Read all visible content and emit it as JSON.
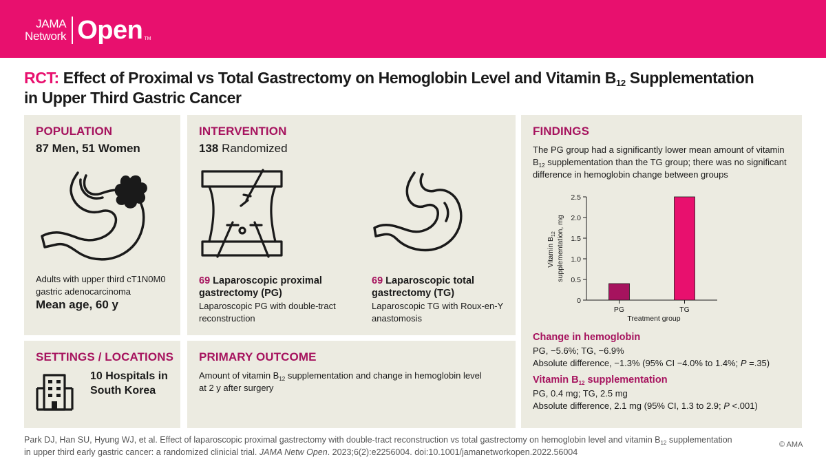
{
  "header": {
    "logo_line1": "JAMA",
    "logo_line2": "Network",
    "logo_open": "Open",
    "logo_tm": "TM"
  },
  "title": {
    "prefix": "RCT:",
    "text_part1": "Effect of Proximal vs Total Gastrectomy on Hemoglobin Level and Vitamin B",
    "subscript": "12",
    "text_part2": " Supplementation",
    "text_line2": "in Upper Third Gastric Cancer"
  },
  "population": {
    "label": "POPULATION",
    "headline": "87 Men, 51 Women",
    "description": "Adults with upper third cT1N0M0 gastric adenocarcinoma",
    "age": "Mean age, 60 y"
  },
  "intervention": {
    "label": "INTERVENTION",
    "headline_number": "138",
    "headline_text": " Randomized",
    "pg": {
      "count": "69",
      "title": " Laparoscopic proximal gastrectomy (PG)",
      "description": "Laparoscopic PG with double-tract reconstruction"
    },
    "tg": {
      "count": "69",
      "title": " Laparoscopic total gastrectomy (TG)",
      "description": "Laparoscopic TG with Roux-en-Y anastomosis"
    }
  },
  "findings": {
    "label": "FINDINGS",
    "intro_part1": "The PG group had a significantly lower mean amount of vitamin B",
    "intro_sub": "12",
    "intro_part2": " supplementation than the TG group; there was no significant difference in hemoglobin change between groups",
    "hemoglobin": {
      "title": "Change in hemoglobin",
      "line1": "PG, −5.6%; TG, −6.9%",
      "line2_a": "Absolute difference, −1.3% (95% CI −4.0% to 1.4%; ",
      "line2_p": "P",
      "line2_b": " =.35)"
    },
    "vitamin": {
      "title_a": "Vitamin B",
      "title_sub": "12",
      "title_b": " supplementation",
      "line1": "PG, 0.4 mg; TG, 2.5 mg",
      "line2_a": "Absolute difference, 2.1 mg (95% CI, 1.3 to 2.9; ",
      "line2_p": "P",
      "line2_b": " <.001)"
    }
  },
  "settings": {
    "label": "SETTINGS / LOCATIONS",
    "text": "10 Hospitals in South Korea"
  },
  "outcome": {
    "label": "PRIMARY OUTCOME",
    "text_part1": "Amount of vitamin B",
    "text_sub": "12",
    "text_part2": " supplementation and change in hemoglobin level at 2 y after surgery"
  },
  "citation": {
    "part1": "Park DJ, Han SU, Hyung WJ, et al. Effect of laparoscopic proximal gastrectomy with double-tract reconstruction vs total gastrectomy on hemoglobin level and vitamin B",
    "sub": "12",
    "part2": " supplementation in upper third early gastric cancer: a randomized clinicial trial. ",
    "journal": "JAMA Netw Open",
    "part3": ". 2023;6(2):e2256004. doi:10.1001/jamanetworkopen.2022.56004"
  },
  "copyright": "© AMA",
  "colors": {
    "brand": "#e8106e",
    "label": "#a6135e",
    "panel": "#ecebe1",
    "pg_bar": "#a6135e",
    "tg_bar": "#e8106e"
  },
  "chart_data": {
    "type": "bar",
    "categories": [
      "PG",
      "TG"
    ],
    "values": [
      0.4,
      2.5
    ],
    "title": "",
    "xlabel": "Treatment group",
    "ylabel_a": "Vitamin B",
    "ylabel_sub": "12",
    "ylabel_b": "supplementation, mg",
    "ylim": [
      0,
      2.5
    ],
    "yticks": [
      "0",
      "0.5",
      "1.0",
      "1.5",
      "2.0",
      "2.5"
    ],
    "ytick_values": [
      0,
      0.5,
      1.0,
      1.5,
      2.0,
      2.5
    ],
    "grid": false
  }
}
